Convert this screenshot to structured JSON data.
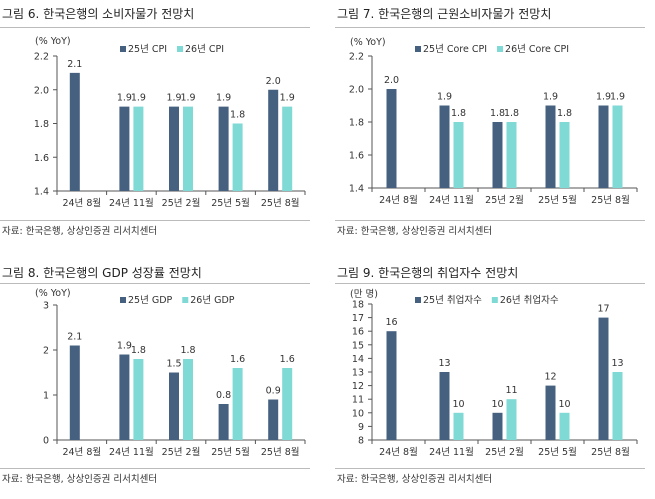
{
  "colors": {
    "series1": "#46607f",
    "series2": "#7fd9d5",
    "axis": "#555"
  },
  "chart_data": [
    {
      "type": "bar",
      "title": "그림 6. 한국은행의 소비자물가 전망치",
      "unit_label": "(% YoY)",
      "categories": [
        "24년 8월",
        "24년 11월",
        "25년 2월",
        "25년 5월",
        "25년 8월"
      ],
      "series": [
        {
          "name": "25년 CPI",
          "values": [
            2.1,
            1.9,
            1.9,
            1.9,
            2.0
          ],
          "labels": [
            "2.1",
            "1.9",
            "1.9",
            "1.9",
            "2.0"
          ]
        },
        {
          "name": "26년 CPI",
          "values": [
            null,
            1.9,
            1.9,
            1.8,
            1.9
          ],
          "labels": [
            null,
            "1.9",
            "1.9",
            "1.8",
            "1.9"
          ]
        }
      ],
      "ylim": [
        1.4,
        2.2
      ],
      "yticks": [
        "1.4",
        "1.6",
        "1.8",
        "2.0",
        "2.2"
      ],
      "grid": false,
      "legend": "top",
      "source": "자료: 한국은행, 상상인증권 리서치센터"
    },
    {
      "type": "bar",
      "title": "그림 7. 한국은행의 근원소비자물가 전망치",
      "unit_label": "(% YoY)",
      "categories": [
        "24년 8월",
        "24년 11월",
        "25년 2월",
        "25년 5월",
        "25년 8월"
      ],
      "series": [
        {
          "name": "25년 Core CPI",
          "values": [
            2.0,
            1.9,
            1.8,
            1.9,
            1.9
          ],
          "labels": [
            "2.0",
            "1.9",
            "1.8",
            "1.9",
            "1.9"
          ]
        },
        {
          "name": "26년 Core CPI",
          "values": [
            null,
            1.8,
            1.8,
            1.8,
            1.9
          ],
          "labels": [
            null,
            "1.8",
            "1.8",
            "1.8",
            "1.9"
          ]
        }
      ],
      "ylim": [
        1.4,
        2.2
      ],
      "yticks": [
        "1.4",
        "1.6",
        "1.8",
        "2.0",
        "2.2"
      ],
      "grid": false,
      "legend": "top",
      "source": "자료: 한국은행, 상상인증권 리서치센터"
    },
    {
      "type": "bar",
      "title": "그림 8. 한국은행의 GDP 성장률 전망치",
      "unit_label": "(% YoY)",
      "categories": [
        "24년 8월",
        "24년 11월",
        "25년 2월",
        "25년 5월",
        "25년 8월"
      ],
      "series": [
        {
          "name": "25년 GDP",
          "values": [
            2.1,
            1.9,
            1.5,
            0.8,
            0.9
          ],
          "labels": [
            "2.1",
            "1.9",
            "1.5",
            "0.8",
            "0.9"
          ]
        },
        {
          "name": "26년 GDP",
          "values": [
            null,
            1.8,
            1.8,
            1.6,
            1.6
          ],
          "labels": [
            null,
            "1.8",
            "1.8",
            "1.6",
            "1.6"
          ]
        }
      ],
      "ylim": [
        0,
        3
      ],
      "yticks": [
        "0",
        "1",
        "2",
        "3"
      ],
      "grid": false,
      "legend": "top",
      "source": "자료: 한국은행, 상상인증권 리서치센터"
    },
    {
      "type": "bar",
      "title": "그림 9. 한국은행의 취업자수 전망치",
      "unit_label": "(만 명)",
      "categories": [
        "24년 8월",
        "24년 11월",
        "25년 2월",
        "25년 5월",
        "25년 8월"
      ],
      "series": [
        {
          "name": "25년 취업자수",
          "values": [
            16,
            13,
            10,
            12,
            17
          ],
          "labels": [
            "16",
            "13",
            "10",
            "12",
            "17"
          ]
        },
        {
          "name": "26년 취업자수",
          "values": [
            null,
            10,
            11,
            10,
            13
          ],
          "labels": [
            null,
            "10",
            "11",
            "10",
            "13"
          ]
        }
      ],
      "ylim": [
        8,
        18
      ],
      "yticks": [
        "8",
        "9",
        "10",
        "11",
        "12",
        "13",
        "14",
        "15",
        "16",
        "17",
        "18"
      ],
      "grid": false,
      "legend": "top",
      "source": "자료: 한국은행, 상상인증권 리서치센터"
    }
  ]
}
